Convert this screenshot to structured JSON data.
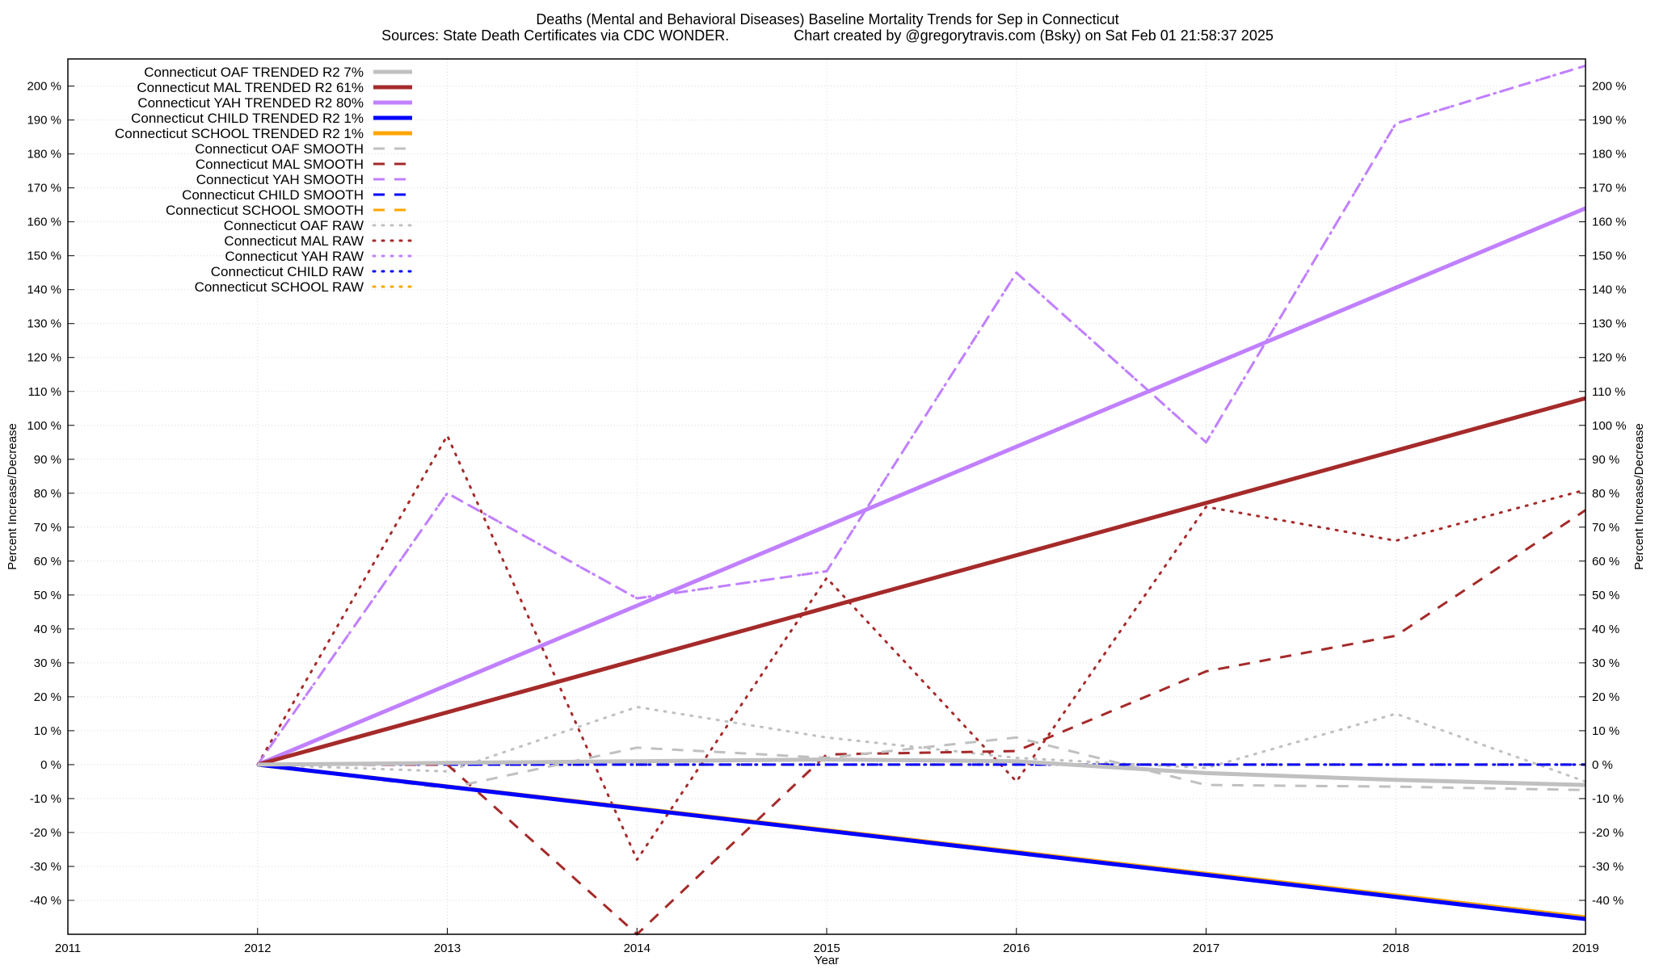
{
  "chart_data": {
    "type": "line",
    "title": "Deaths (Mental and Behavioral Diseases)  Baseline Mortality Trends for Sep in Connecticut",
    "subtitle": "Sources: State Death Certificates via CDC WONDER.                Chart created by @gregorytravis.com (Bsky) on Sat Feb 01 21:58:37 2025",
    "xlabel": "Year",
    "ylabel": "Percent Increase/Decrease",
    "y2label": "Percent Increase/Decrease",
    "xlim": [
      2011,
      2019
    ],
    "ylim": [
      -50,
      208
    ],
    "x_ticks": [
      2011,
      2012,
      2013,
      2014,
      2015,
      2016,
      2017,
      2018,
      2019
    ],
    "y_ticks": [
      {
        "v": 200,
        "label": "200 %"
      },
      {
        "v": 190,
        "label": "190 %"
      },
      {
        "v": 180,
        "label": "180 %"
      },
      {
        "v": 170,
        "label": "170 %"
      },
      {
        "v": 160,
        "label": "160 %"
      },
      {
        "v": 150,
        "label": "150 %"
      },
      {
        "v": 140,
        "label": "140 %"
      },
      {
        "v": 130,
        "label": "130 %"
      },
      {
        "v": 120,
        "label": "120 %"
      },
      {
        "v": 110,
        "label": "110 %"
      },
      {
        "v": 100,
        "label": "100 %"
      },
      {
        "v": 90,
        "label": "90 %"
      },
      {
        "v": 80,
        "label": "80 %"
      },
      {
        "v": 70,
        "label": "70 %"
      },
      {
        "v": 60,
        "label": "60 %"
      },
      {
        "v": 50,
        "label": "50 %"
      },
      {
        "v": 40,
        "label": "40 %"
      },
      {
        "v": 30,
        "label": "30 %"
      },
      {
        "v": 20,
        "label": "20 %"
      },
      {
        "v": 10,
        "label": "10 %"
      },
      {
        "v": 0,
        "label": "0 %"
      },
      {
        "v": -10,
        "label": "-10 %"
      },
      {
        "v": -20,
        "label": "-20 %"
      },
      {
        "v": -30,
        "label": "-30 %"
      },
      {
        "v": -40,
        "label": "-40 %"
      }
    ],
    "grid": true,
    "legend_position": "top-left",
    "series": [
      {
        "name": "Connecticut OAF TRENDED R2  7%",
        "color": "#c0c0c0",
        "style": "solid",
        "width": 5,
        "x": [
          2012,
          2013,
          2014,
          2015,
          2016,
          2017,
          2018,
          2019
        ],
        "values": [
          0,
          0.5,
          1,
          1.5,
          1,
          -2.5,
          -4.5,
          -6
        ]
      },
      {
        "name": "Connecticut MAL TRENDED R2  61%",
        "color": "#a52a2a",
        "style": "solid",
        "width": 5,
        "x": [
          2012,
          2019
        ],
        "values": [
          0,
          108
        ]
      },
      {
        "name": "Connecticut YAH TRENDED R2  80%",
        "color": "#c080ff",
        "style": "solid",
        "width": 5,
        "x": [
          2012,
          2019
        ],
        "values": [
          0,
          164
        ]
      },
      {
        "name": "Connecticut CHILD TRENDED R2   1%",
        "color": "#0000ff",
        "style": "solid",
        "width": 5,
        "x": [
          2012,
          2019
        ],
        "values": [
          0,
          -45.5
        ]
      },
      {
        "name": "Connecticut SCHOOL TRENDED R2   1%",
        "color": "#ffa500",
        "style": "solid",
        "width": 5,
        "x": [
          2012,
          2019
        ],
        "values": [
          0,
          -45
        ]
      },
      {
        "name": "Connecticut OAF SMOOTH",
        "color": "#c0c0c0",
        "style": "dashed",
        "width": 3,
        "x": [
          2012,
          2013,
          2014,
          2015,
          2016,
          2017,
          2018,
          2019
        ],
        "values": [
          0,
          -7,
          5,
          2,
          8,
          -6,
          -6.5,
          -7.5
        ]
      },
      {
        "name": "Connecticut MAL SMOOTH",
        "color": "#a52a2a",
        "style": "dashed",
        "width": 3,
        "x": [
          2012,
          2013,
          2014,
          2015,
          2016,
          2017,
          2018,
          2019
        ],
        "values": [
          0,
          0,
          -50,
          3,
          4,
          27.5,
          38,
          75
        ]
      },
      {
        "name": "Connecticut YAH SMOOTH",
        "color": "#c080ff",
        "style": "dashed",
        "width": 3,
        "x": [
          2012,
          2013,
          2014,
          2015,
          2016,
          2017,
          2018,
          2019
        ],
        "values": [
          0,
          80,
          49,
          57,
          145,
          95,
          189,
          206
        ]
      },
      {
        "name": "Connecticut CHILD SMOOTH",
        "color": "#0000ff",
        "style": "dashed",
        "width": 3,
        "x": [
          2012,
          2013,
          2014,
          2015,
          2016,
          2017,
          2018,
          2019
        ],
        "values": [
          0,
          0,
          0,
          0,
          0,
          0,
          0,
          0
        ]
      },
      {
        "name": "Connecticut SCHOOL SMOOTH",
        "color": "#ffa500",
        "style": "dashed",
        "width": 3,
        "x": [
          2012,
          2013,
          2014,
          2015,
          2016,
          2017,
          2018,
          2019
        ],
        "values": [
          0,
          0,
          0,
          0,
          0,
          0,
          0,
          0
        ]
      },
      {
        "name": "Connecticut OAF RAW",
        "color": "#c0c0c0",
        "style": "dotted",
        "width": 3,
        "x": [
          2012,
          2013,
          2014,
          2015,
          2016,
          2017,
          2018,
          2019
        ],
        "values": [
          0,
          -2,
          17,
          8,
          2,
          -1,
          15,
          -5
        ]
      },
      {
        "name": "Connecticut MAL RAW",
        "color": "#a52a2a",
        "style": "dotted",
        "width": 3,
        "x": [
          2012,
          2013,
          2014,
          2015,
          2016,
          2017,
          2018,
          2019
        ],
        "values": [
          0,
          97,
          -28,
          55,
          -5,
          76,
          66,
          81
        ]
      },
      {
        "name": "Connecticut YAH RAW",
        "color": "#c080ff",
        "style": "dotted",
        "width": 3,
        "x": [
          2012,
          2013,
          2014,
          2015,
          2016,
          2017,
          2018,
          2019
        ],
        "values": [
          0,
          80,
          49,
          57,
          145,
          95,
          189,
          206
        ]
      },
      {
        "name": "Connecticut CHILD RAW",
        "color": "#0000ff",
        "style": "dotted",
        "width": 3,
        "x": [
          2012,
          2013,
          2014,
          2015,
          2016,
          2017,
          2018,
          2019
        ],
        "values": [
          0,
          0,
          0,
          0,
          0,
          0,
          0,
          0
        ]
      },
      {
        "name": "Connecticut SCHOOL RAW",
        "color": "#ffa500",
        "style": "dotted",
        "width": 3,
        "x": [
          2012,
          2013,
          2014,
          2015,
          2016,
          2017,
          2018,
          2019
        ],
        "values": [
          0,
          0,
          0,
          0,
          0,
          0,
          0,
          0
        ]
      }
    ]
  }
}
